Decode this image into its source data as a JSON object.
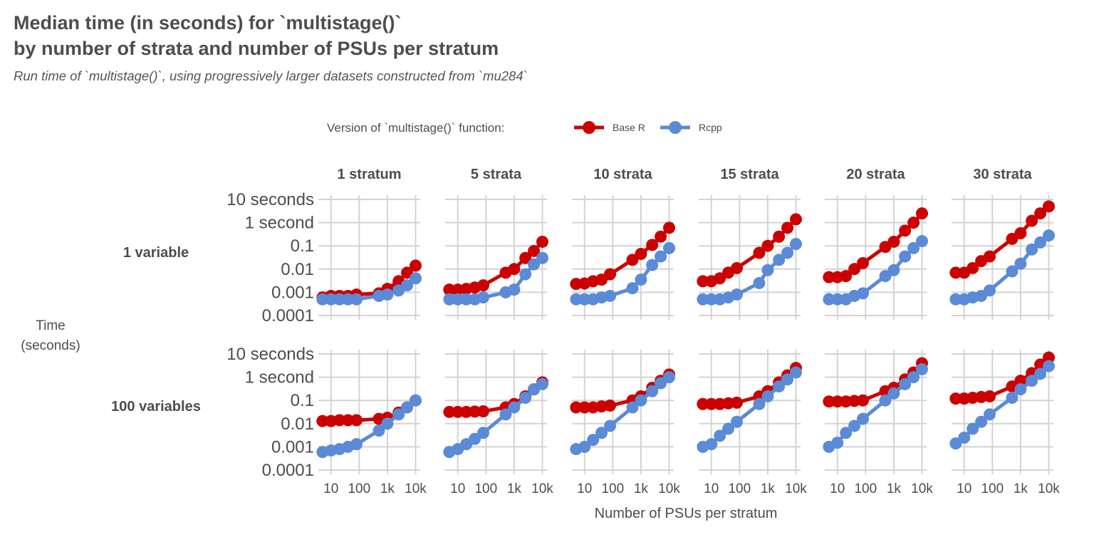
{
  "title_line1": "Median time (in seconds) for `multistage()`",
  "title_line2": "by number of strata and number of PSUs per stratum",
  "subtitle": "Run time of `multistage()`, using progressively larger datasets constructed from `mu284`",
  "chart_data": {
    "type": "line",
    "x_label": "Number of PSUs per stratum",
    "y_label": [
      "Time",
      "(seconds)"
    ],
    "x_scale": "log10",
    "y_scale": "log10",
    "x_ticks": [
      {
        "value": 10,
        "label": "10"
      },
      {
        "value": 100,
        "label": "100"
      },
      {
        "value": 1000,
        "label": "1k"
      },
      {
        "value": 10000,
        "label": "10k"
      }
    ],
    "y_ticks": [
      {
        "value": 0.0001,
        "label": "0.0001"
      },
      {
        "value": 0.001,
        "label": "0.001"
      },
      {
        "value": 0.01,
        "label": "0.01"
      },
      {
        "value": 0.1,
        "label": "0.1"
      },
      {
        "value": 1,
        "label": "1 second"
      },
      {
        "value": 10,
        "label": "10 seconds"
      }
    ],
    "xlim": [
      4,
      13000
    ],
    "ylim": [
      0.0001,
      10
    ],
    "grid": true,
    "legend": {
      "title": "Version of `multistage()` function:",
      "position": "top",
      "entries": [
        {
          "name": "Base R",
          "color": "#cc0000"
        },
        {
          "name": "Rcpp",
          "color": "#5b8bd6"
        }
      ]
    },
    "x_values": [
      5,
      10,
      20,
      40,
      80,
      500,
      1000,
      2500,
      5000,
      10000
    ],
    "column_labels": [
      "1 stratum",
      "5 strata",
      "10 strata",
      "15 strata",
      "20 strata",
      "30 strata"
    ],
    "row_labels": [
      "1 variable",
      "100 variables"
    ],
    "panels": [
      {
        "row": 0,
        "col": 0,
        "series": [
          {
            "name": "Base R",
            "values": [
              0.0006,
              0.0007,
              0.0007,
              0.0007,
              0.0008,
              0.0009,
              0.0014,
              0.003,
              0.007,
              0.014
            ]
          },
          {
            "name": "Rcpp",
            "values": [
              0.0005,
              0.0005,
              0.0005,
              0.0005,
              0.0005,
              0.0007,
              0.0008,
              0.0012,
              0.002,
              0.004
            ]
          }
        ]
      },
      {
        "row": 0,
        "col": 1,
        "series": [
          {
            "name": "Base R",
            "values": [
              0.0013,
              0.0013,
              0.0014,
              0.0016,
              0.002,
              0.007,
              0.01,
              0.03,
              0.06,
              0.15
            ]
          },
          {
            "name": "Rcpp",
            "values": [
              0.0005,
              0.0005,
              0.0005,
              0.0005,
              0.0006,
              0.001,
              0.0013,
              0.006,
              0.016,
              0.03
            ]
          }
        ]
      },
      {
        "row": 0,
        "col": 2,
        "series": [
          {
            "name": "Base R",
            "values": [
              0.0023,
              0.0024,
              0.003,
              0.0035,
              0.006,
              0.025,
              0.045,
              0.11,
              0.25,
              0.6
            ]
          },
          {
            "name": "Rcpp",
            "values": [
              0.0005,
              0.0005,
              0.0005,
              0.0006,
              0.0007,
              0.0015,
              0.0035,
              0.015,
              0.035,
              0.08
            ]
          }
        ]
      },
      {
        "row": 0,
        "col": 3,
        "series": [
          {
            "name": "Base R",
            "values": [
              0.003,
              0.003,
              0.004,
              0.007,
              0.011,
              0.05,
              0.1,
              0.25,
              0.6,
              1.4
            ]
          },
          {
            "name": "Rcpp",
            "values": [
              0.0005,
              0.0005,
              0.0005,
              0.0006,
              0.0008,
              0.0025,
              0.009,
              0.025,
              0.05,
              0.12
            ]
          }
        ]
      },
      {
        "row": 0,
        "col": 4,
        "series": [
          {
            "name": "Base R",
            "values": [
              0.0045,
              0.0045,
              0.005,
              0.01,
              0.018,
              0.09,
              0.15,
              0.45,
              1.0,
              2.5
            ]
          },
          {
            "name": "Rcpp",
            "values": [
              0.0005,
              0.0005,
              0.0005,
              0.0007,
              0.0009,
              0.005,
              0.009,
              0.035,
              0.08,
              0.16
            ]
          }
        ]
      },
      {
        "row": 0,
        "col": 5,
        "series": [
          {
            "name": "Base R",
            "values": [
              0.007,
              0.007,
              0.011,
              0.022,
              0.035,
              0.2,
              0.35,
              1.2,
              2.5,
              5.0
            ]
          },
          {
            "name": "Rcpp",
            "values": [
              0.0005,
              0.0005,
              0.0006,
              0.0007,
              0.0012,
              0.008,
              0.017,
              0.07,
              0.14,
              0.28
            ]
          }
        ]
      },
      {
        "row": 1,
        "col": 0,
        "series": [
          {
            "name": "Base R",
            "values": [
              0.013,
              0.013,
              0.014,
              0.014,
              0.014,
              0.016,
              0.018,
              0.03,
              0.05,
              0.1
            ]
          },
          {
            "name": "Rcpp",
            "values": [
              0.0006,
              0.0007,
              0.0008,
              0.001,
              0.0013,
              0.005,
              0.01,
              0.025,
              0.05,
              0.1
            ]
          }
        ]
      },
      {
        "row": 1,
        "col": 1,
        "series": [
          {
            "name": "Base R",
            "values": [
              0.032,
              0.032,
              0.032,
              0.033,
              0.034,
              0.05,
              0.07,
              0.15,
              0.3,
              0.6
            ]
          },
          {
            "name": "Rcpp",
            "values": [
              0.0006,
              0.0008,
              0.0013,
              0.0022,
              0.004,
              0.025,
              0.05,
              0.13,
              0.3,
              0.5
            ]
          }
        ]
      },
      {
        "row": 1,
        "col": 2,
        "series": [
          {
            "name": "Base R",
            "values": [
              0.05,
              0.05,
              0.05,
              0.055,
              0.06,
              0.1,
              0.15,
              0.35,
              0.7,
              1.3
            ]
          },
          {
            "name": "Rcpp",
            "values": [
              0.0008,
              0.001,
              0.002,
              0.004,
              0.008,
              0.05,
              0.1,
              0.25,
              0.55,
              1.0
            ]
          }
        ]
      },
      {
        "row": 1,
        "col": 3,
        "series": [
          {
            "name": "Base R",
            "values": [
              0.07,
              0.07,
              0.07,
              0.075,
              0.08,
              0.15,
              0.25,
              0.6,
              1.2,
              2.5
            ]
          },
          {
            "name": "Rcpp",
            "values": [
              0.001,
              0.0013,
              0.003,
              0.006,
              0.012,
              0.07,
              0.15,
              0.4,
              0.8,
              1.6
            ]
          }
        ]
      },
      {
        "row": 1,
        "col": 4,
        "series": [
          {
            "name": "Base R",
            "values": [
              0.09,
              0.09,
              0.09,
              0.095,
              0.1,
              0.25,
              0.35,
              0.8,
              1.6,
              4.0
            ]
          },
          {
            "name": "Rcpp",
            "values": [
              0.001,
              0.0015,
              0.004,
              0.008,
              0.016,
              0.1,
              0.2,
              0.5,
              1.0,
              2.2
            ]
          }
        ]
      },
      {
        "row": 1,
        "col": 5,
        "series": [
          {
            "name": "Base R",
            "values": [
              0.12,
              0.12,
              0.13,
              0.14,
              0.15,
              0.4,
              0.7,
              1.5,
              3.5,
              7.0
            ]
          },
          {
            "name": "Rcpp",
            "values": [
              0.0014,
              0.0025,
              0.006,
              0.012,
              0.025,
              0.13,
              0.3,
              0.7,
              1.4,
              3.0
            ]
          }
        ]
      }
    ]
  }
}
